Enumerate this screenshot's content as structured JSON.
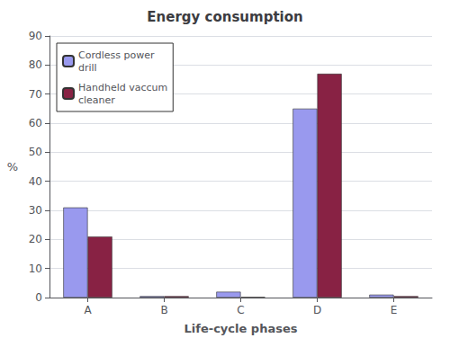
{
  "chart_data": {
    "type": "bar",
    "title": "Energy consumption",
    "x_label": "Life-cycle phases",
    "y_label": "%",
    "categories": [
      "A",
      "B",
      "C",
      "D",
      "E"
    ],
    "series": [
      {
        "name": "Cordless power\ndrill",
        "color": "#9999ee",
        "values": [
          31,
          0.5,
          2,
          65,
          1
        ]
      },
      {
        "name": "Handheld vaccum\ncleaner",
        "color": "#882244",
        "values": [
          21,
          0.5,
          0.2,
          77,
          0.5
        ]
      }
    ],
    "ylim": [
      0,
      90
    ],
    "yticks": [
      0,
      10,
      20,
      30,
      40,
      50,
      60,
      70,
      80,
      90
    ],
    "grid": true,
    "legend": "upper left"
  }
}
